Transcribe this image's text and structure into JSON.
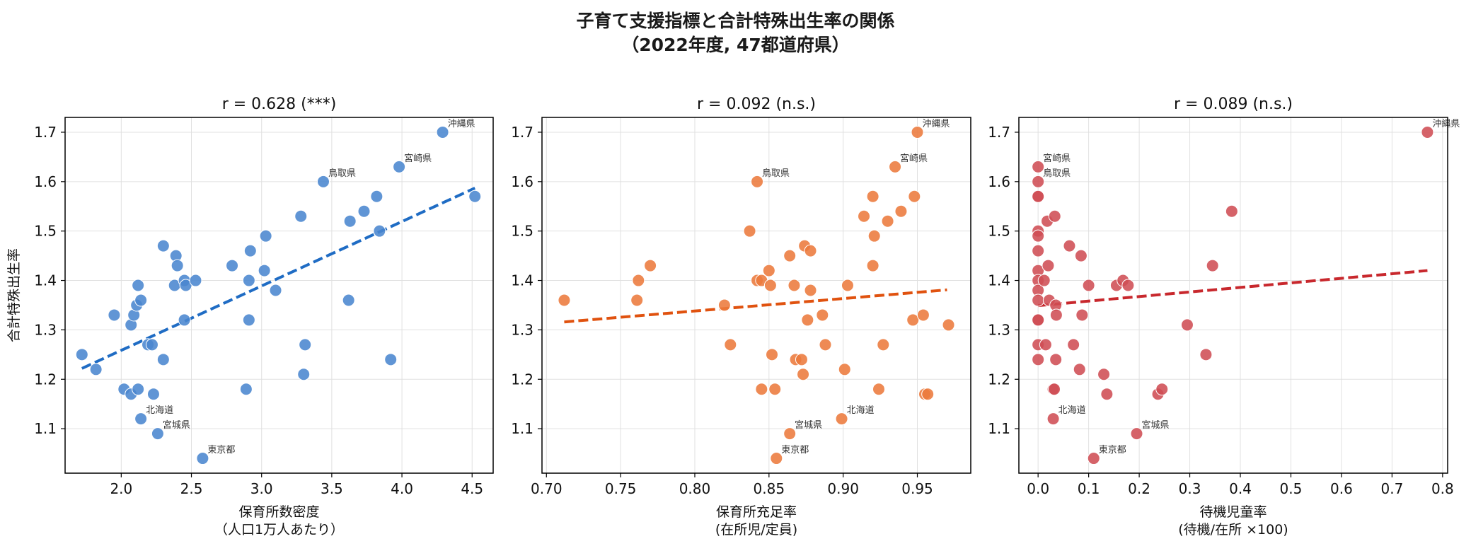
{
  "figure": {
    "title_line1": "子育て支援指標と合計特殊出生率の関係",
    "title_line2": "（2022年度, 47都道府県）"
  },
  "colors": {
    "blue_points": "#4a86cf",
    "blue_line": "#1f6cc4",
    "orange_points": "#ec7a3c",
    "orange_line": "#e0520f",
    "red_points": "#cf4d54",
    "red_line": "#c8282d",
    "grid": "#e0e0e0"
  },
  "chart_data": [
    {
      "type": "scatter",
      "title": "r = 0.628 (***)",
      "xlabel": "保育所数密度",
      "xlabel_line2": "（人口1万人あたり）",
      "ylabel": "合計特殊出生率",
      "xlim": [
        1.6,
        4.65
      ],
      "ylim": [
        1.01,
        1.73
      ],
      "xticks": [
        "2.0",
        "2.5",
        "3.0",
        "3.5",
        "4.0",
        "4.5"
      ],
      "yticks": [
        "1.1",
        "1.2",
        "1.3",
        "1.4",
        "1.5",
        "1.6",
        "1.7"
      ],
      "grid": true,
      "trend": {
        "x": [
          1.72,
          4.52
        ],
        "y": [
          1.222,
          1.587
        ],
        "style": "dashed"
      },
      "points": [
        {
          "x": 4.29,
          "y": 1.7,
          "label": "沖縄県"
        },
        {
          "x": 3.98,
          "y": 1.63,
          "label": "宮崎県"
        },
        {
          "x": 3.44,
          "y": 1.6,
          "label": "鳥取県"
        },
        {
          "x": 2.14,
          "y": 1.12,
          "label": "北海道"
        },
        {
          "x": 2.26,
          "y": 1.09,
          "label": "宮城県"
        },
        {
          "x": 2.58,
          "y": 1.04,
          "label": "東京都"
        },
        {
          "x": 1.72,
          "y": 1.25
        },
        {
          "x": 1.82,
          "y": 1.22
        },
        {
          "x": 1.95,
          "y": 1.33
        },
        {
          "x": 2.02,
          "y": 1.18
        },
        {
          "x": 2.07,
          "y": 1.17
        },
        {
          "x": 2.12,
          "y": 1.18
        },
        {
          "x": 2.07,
          "y": 1.31
        },
        {
          "x": 2.09,
          "y": 1.33
        },
        {
          "x": 2.11,
          "y": 1.35
        },
        {
          "x": 2.14,
          "y": 1.36
        },
        {
          "x": 2.12,
          "y": 1.39
        },
        {
          "x": 2.19,
          "y": 1.27
        },
        {
          "x": 2.22,
          "y": 1.27
        },
        {
          "x": 2.23,
          "y": 1.17
        },
        {
          "x": 2.3,
          "y": 1.24
        },
        {
          "x": 2.3,
          "y": 1.47
        },
        {
          "x": 2.38,
          "y": 1.39
        },
        {
          "x": 2.39,
          "y": 1.45
        },
        {
          "x": 2.4,
          "y": 1.43
        },
        {
          "x": 2.45,
          "y": 1.4
        },
        {
          "x": 2.46,
          "y": 1.39
        },
        {
          "x": 2.45,
          "y": 1.32
        },
        {
          "x": 2.53,
          "y": 1.4
        },
        {
          "x": 2.79,
          "y": 1.43
        },
        {
          "x": 2.89,
          "y": 1.18
        },
        {
          "x": 2.91,
          "y": 1.32
        },
        {
          "x": 2.91,
          "y": 1.4
        },
        {
          "x": 2.92,
          "y": 1.46
        },
        {
          "x": 3.02,
          "y": 1.42
        },
        {
          "x": 3.03,
          "y": 1.49
        },
        {
          "x": 3.1,
          "y": 1.38
        },
        {
          "x": 3.28,
          "y": 1.53
        },
        {
          "x": 3.31,
          "y": 1.27
        },
        {
          "x": 3.3,
          "y": 1.21
        },
        {
          "x": 3.62,
          "y": 1.36
        },
        {
          "x": 3.63,
          "y": 1.52
        },
        {
          "x": 3.73,
          "y": 1.54
        },
        {
          "x": 3.82,
          "y": 1.57
        },
        {
          "x": 3.84,
          "y": 1.5
        },
        {
          "x": 3.92,
          "y": 1.24
        },
        {
          "x": 4.52,
          "y": 1.57
        }
      ]
    },
    {
      "type": "scatter",
      "title": "r = 0.092 (n.s.)",
      "xlabel": "保育所充足率",
      "xlabel_line2": "(在所児/定員)",
      "ylabel": "",
      "xlim": [
        0.697,
        0.986
      ],
      "ylim": [
        1.01,
        1.73
      ],
      "xticks": [
        "0.70",
        "0.75",
        "0.80",
        "0.85",
        "0.90",
        "0.95"
      ],
      "yticks": [
        "1.1",
        "1.2",
        "1.3",
        "1.4",
        "1.5",
        "1.6",
        "1.7"
      ],
      "grid": true,
      "trend": {
        "x": [
          0.712,
          0.97
        ],
        "y": [
          1.316,
          1.381
        ],
        "style": "dashed"
      },
      "points": [
        {
          "x": 0.95,
          "y": 1.7,
          "label": "沖縄県"
        },
        {
          "x": 0.935,
          "y": 1.63,
          "label": "宮崎県"
        },
        {
          "x": 0.842,
          "y": 1.6,
          "label": "鳥取県"
        },
        {
          "x": 0.899,
          "y": 1.12,
          "label": "北海道"
        },
        {
          "x": 0.864,
          "y": 1.09,
          "label": "宮城県"
        },
        {
          "x": 0.855,
          "y": 1.04,
          "label": "東京都"
        },
        {
          "x": 0.712,
          "y": 1.36
        },
        {
          "x": 0.761,
          "y": 1.36
        },
        {
          "x": 0.762,
          "y": 1.4
        },
        {
          "x": 0.77,
          "y": 1.43
        },
        {
          "x": 0.82,
          "y": 1.35
        },
        {
          "x": 0.824,
          "y": 1.27
        },
        {
          "x": 0.837,
          "y": 1.5
        },
        {
          "x": 0.842,
          "y": 1.4
        },
        {
          "x": 0.845,
          "y": 1.4
        },
        {
          "x": 0.845,
          "y": 1.18
        },
        {
          "x": 0.85,
          "y": 1.42
        },
        {
          "x": 0.851,
          "y": 1.39
        },
        {
          "x": 0.852,
          "y": 1.25
        },
        {
          "x": 0.854,
          "y": 1.18
        },
        {
          "x": 0.864,
          "y": 1.45
        },
        {
          "x": 0.867,
          "y": 1.39
        },
        {
          "x": 0.868,
          "y": 1.24
        },
        {
          "x": 0.872,
          "y": 1.24
        },
        {
          "x": 0.873,
          "y": 1.21
        },
        {
          "x": 0.874,
          "y": 1.47
        },
        {
          "x": 0.876,
          "y": 1.32
        },
        {
          "x": 0.878,
          "y": 1.46
        },
        {
          "x": 0.878,
          "y": 1.38
        },
        {
          "x": 0.886,
          "y": 1.33
        },
        {
          "x": 0.888,
          "y": 1.27
        },
        {
          "x": 0.901,
          "y": 1.22
        },
        {
          "x": 0.903,
          "y": 1.39
        },
        {
          "x": 0.914,
          "y": 1.53
        },
        {
          "x": 0.92,
          "y": 1.57
        },
        {
          "x": 0.92,
          "y": 1.43
        },
        {
          "x": 0.921,
          "y": 1.49
        },
        {
          "x": 0.924,
          "y": 1.18
        },
        {
          "x": 0.927,
          "y": 1.27
        },
        {
          "x": 0.93,
          "y": 1.52
        },
        {
          "x": 0.939,
          "y": 1.54
        },
        {
          "x": 0.947,
          "y": 1.32
        },
        {
          "x": 0.948,
          "y": 1.57
        },
        {
          "x": 0.954,
          "y": 1.33
        },
        {
          "x": 0.955,
          "y": 1.17
        },
        {
          "x": 0.957,
          "y": 1.17
        },
        {
          "x": 0.971,
          "y": 1.31
        }
      ]
    },
    {
      "type": "scatter",
      "title": "r = 0.089 (n.s.)",
      "xlabel": "待機児童率",
      "xlabel_line2": "(待機/在所 ×100)",
      "ylabel": "",
      "xlim": [
        -0.038,
        0.81
      ],
      "ylim": [
        1.01,
        1.73
      ],
      "xticks": [
        "0.0",
        "0.1",
        "0.2",
        "0.3",
        "0.4",
        "0.5",
        "0.6",
        "0.7",
        "0.8"
      ],
      "yticks": [
        "1.1",
        "1.2",
        "1.3",
        "1.4",
        "1.5",
        "1.6",
        "1.7"
      ],
      "grid": true,
      "trend": {
        "x": [
          0.0,
          0.77
        ],
        "y": [
          1.349,
          1.42
        ],
        "style": "dashed"
      },
      "points": [
        {
          "x": 0.77,
          "y": 1.7,
          "label": "沖縄県"
        },
        {
          "x": 0.0,
          "y": 1.63,
          "label": "宮崎県"
        },
        {
          "x": 0.0,
          "y": 1.6,
          "label": "鳥取県"
        },
        {
          "x": 0.03,
          "y": 1.12,
          "label": "北海道"
        },
        {
          "x": 0.195,
          "y": 1.09,
          "label": "宮城県"
        },
        {
          "x": 0.11,
          "y": 1.04,
          "label": "東京都"
        },
        {
          "x": 0.0,
          "y": 1.57
        },
        {
          "x": 0.0,
          "y": 1.57
        },
        {
          "x": 0.0,
          "y": 1.5
        },
        {
          "x": 0.0,
          "y": 1.49
        },
        {
          "x": 0.0,
          "y": 1.46
        },
        {
          "x": 0.0,
          "y": 1.42
        },
        {
          "x": 0.0,
          "y": 1.4
        },
        {
          "x": 0.0,
          "y": 1.38
        },
        {
          "x": 0.0,
          "y": 1.36
        },
        {
          "x": 0.0,
          "y": 1.32
        },
        {
          "x": 0.0,
          "y": 1.32
        },
        {
          "x": 0.0,
          "y": 1.27
        },
        {
          "x": 0.0,
          "y": 1.24
        },
        {
          "x": 0.015,
          "y": 1.27
        },
        {
          "x": 0.012,
          "y": 1.4
        },
        {
          "x": 0.018,
          "y": 1.52
        },
        {
          "x": 0.02,
          "y": 1.43
        },
        {
          "x": 0.022,
          "y": 1.36
        },
        {
          "x": 0.03,
          "y": 1.18
        },
        {
          "x": 0.032,
          "y": 1.18
        },
        {
          "x": 0.035,
          "y": 1.35
        },
        {
          "x": 0.036,
          "y": 1.33
        },
        {
          "x": 0.035,
          "y": 1.24
        },
        {
          "x": 0.033,
          "y": 1.53
        },
        {
          "x": 0.062,
          "y": 1.47
        },
        {
          "x": 0.07,
          "y": 1.27
        },
        {
          "x": 0.082,
          "y": 1.22
        },
        {
          "x": 0.085,
          "y": 1.45
        },
        {
          "x": 0.087,
          "y": 1.33
        },
        {
          "x": 0.1,
          "y": 1.39
        },
        {
          "x": 0.13,
          "y": 1.21
        },
        {
          "x": 0.136,
          "y": 1.17
        },
        {
          "x": 0.155,
          "y": 1.39
        },
        {
          "x": 0.168,
          "y": 1.4
        },
        {
          "x": 0.178,
          "y": 1.39
        },
        {
          "x": 0.237,
          "y": 1.17
        },
        {
          "x": 0.245,
          "y": 1.18
        },
        {
          "x": 0.295,
          "y": 1.31
        },
        {
          "x": 0.332,
          "y": 1.25
        },
        {
          "x": 0.345,
          "y": 1.43
        },
        {
          "x": 0.383,
          "y": 1.54
        }
      ]
    }
  ]
}
